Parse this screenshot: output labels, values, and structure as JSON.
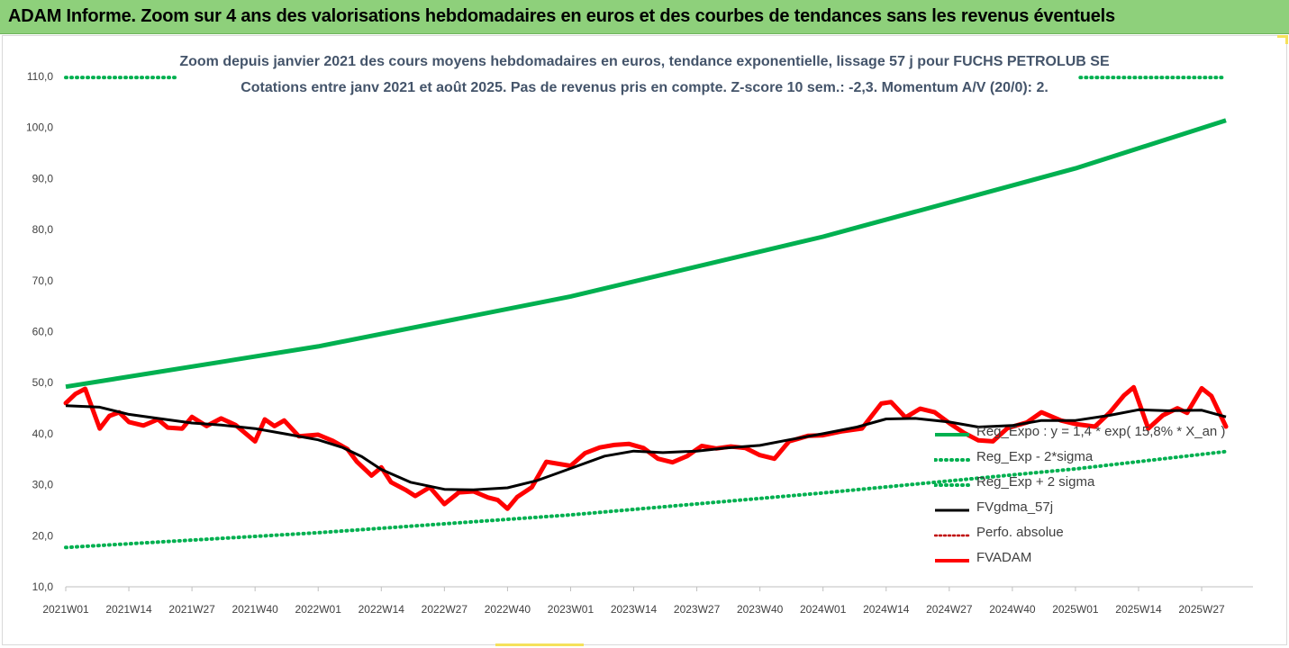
{
  "banner": {
    "title": "ADAM Informe. Zoom sur 4 ans des valorisations hebdomadaires en euros et des courbes de tendances sans les revenus éventuels"
  },
  "colors": {
    "banner_bg": "#8ed07b",
    "trend": "#00b050",
    "bands": "#00b050",
    "smooth": "#000000",
    "perf": "#c00000",
    "price": "#ff0000",
    "title_text": "#44546a"
  },
  "chart_data": {
    "type": "line",
    "title": "Zoom depuis janvier 2021 des cours moyens hebdomadaires en euros, tendance exponentielle, lissage 57 j pour FUCHS PETROLUB SE",
    "subtitle": "Cotations entre janv 2021 et août 2025. Pas de revenus pris en compte. Z-score 10 sem.: -2,3. Momentum A/V (20/0): 2.",
    "ylim": [
      10,
      110
    ],
    "y_ticks": [
      "10,0",
      "20,0",
      "30,0",
      "40,0",
      "50,0",
      "60,0",
      "70,0",
      "80,0",
      "90,0",
      "100,0",
      "110,0"
    ],
    "x_ticks": [
      "2021W01",
      "2021W14",
      "2021W27",
      "2021W40",
      "2022W01",
      "2022W14",
      "2022W27",
      "2022W40",
      "2023W01",
      "2023W14",
      "2023W27",
      "2023W40",
      "2024W01",
      "2024W14",
      "2024W27",
      "2024W40",
      "2025W01",
      "2025W14",
      "2025W27"
    ],
    "grid": false,
    "legend_position": "bottom-right",
    "legend": [
      {
        "key": "trend",
        "label": "Reg_Expo : y = 1,4 * exp( 15,8% * X_an )",
        "style": "solid-green"
      },
      {
        "key": "lower",
        "label": "Reg_Exp - 2*sigma",
        "style": "dotted-green"
      },
      {
        "key": "upper",
        "label": "Reg_Exp + 2 sigma",
        "style": "dotted-green"
      },
      {
        "key": "smooth",
        "label": "FVgdma_57j",
        "style": "solid-black"
      },
      {
        "key": "perf",
        "label": "Perfo. absolue",
        "style": "dotted-red"
      },
      {
        "key": "price",
        "label": "FVADAM",
        "style": "solid-red"
      }
    ],
    "series": {
      "trend": {
        "x": [
          "2021W01",
          "2022W01",
          "2023W01",
          "2024W01",
          "2025W01",
          "2025W32"
        ],
        "y": [
          49.2,
          57.1,
          66.9,
          78.6,
          92.0,
          101.4
        ]
      },
      "lower": {
        "x": [
          "2021W01",
          "2022W01",
          "2023W01",
          "2024W01",
          "2025W01",
          "2025W32"
        ],
        "y": [
          17.7,
          20.6,
          24.1,
          28.4,
          33.1,
          36.5
        ]
      },
      "upper": {
        "x": [
          "2021W01",
          "2021W24",
          "2025W02",
          "2025W32"
        ],
        "y": [
          109.8,
          109.8,
          109.8,
          109.8
        ]
      },
      "smooth": {
        "x": [
          "2021W01",
          "2021W08",
          "2021W14",
          "2021W20",
          "2021W27",
          "2021W33",
          "2021W40",
          "2021W46",
          "2022W01",
          "2022W06",
          "2022W10",
          "2022W14",
          "2022W20",
          "2022W27",
          "2022W33",
          "2022W40",
          "2022W46",
          "2023W01",
          "2023W08",
          "2023W14",
          "2023W20",
          "2023W27",
          "2023W33",
          "2023W40",
          "2023W46",
          "2024W01",
          "2024W08",
          "2024W14",
          "2024W20",
          "2024W27",
          "2024W33",
          "2024W40",
          "2024W46",
          "2025W01",
          "2025W08",
          "2025W14",
          "2025W20",
          "2025W27",
          "2025W32"
        ],
        "y": [
          45.5,
          45.2,
          43.8,
          43.0,
          42.1,
          41.7,
          41.0,
          40.0,
          38.8,
          37.3,
          35.5,
          33.0,
          30.5,
          29.1,
          29.0,
          29.4,
          30.8,
          33.2,
          35.6,
          36.6,
          36.3,
          36.6,
          37.2,
          37.7,
          38.8,
          40.0,
          41.3,
          42.9,
          43.0,
          42.3,
          41.3,
          41.6,
          42.6,
          42.6,
          43.6,
          44.7,
          44.5,
          44.6,
          43.3
        ]
      },
      "price": {
        "x": [
          "2021W01",
          "2021W03",
          "2021W05",
          "2021W06",
          "2021W08",
          "2021W10",
          "2021W12",
          "2021W14",
          "2021W17",
          "2021W20",
          "2021W22",
          "2021W25",
          "2021W27",
          "2021W30",
          "2021W33",
          "2021W36",
          "2021W40",
          "2021W42",
          "2021W44",
          "2021W46",
          "2021W49",
          "2022W01",
          "2022W04",
          "2022W07",
          "2022W09",
          "2022W12",
          "2022W14",
          "2022W16",
          "2022W19",
          "2022W21",
          "2022W24",
          "2022W27",
          "2022W30",
          "2022W33",
          "2022W36",
          "2022W38",
          "2022W40",
          "2022W42",
          "2022W45",
          "2022W48",
          "2023W01",
          "2023W04",
          "2023W07",
          "2023W10",
          "2023W13",
          "2023W16",
          "2023W19",
          "2023W22",
          "2023W25",
          "2023W28",
          "2023W31",
          "2023W34",
          "2023W37",
          "2023W40",
          "2023W43",
          "2023W46",
          "2023W50",
          "2024W01",
          "2024W05",
          "2024W09",
          "2024W13",
          "2024W15",
          "2024W18",
          "2024W21",
          "2024W24",
          "2024W27",
          "2024W30",
          "2024W33",
          "2024W36",
          "2024W39",
          "2024W43",
          "2024W46",
          "2024W50",
          "2025W01",
          "2025W05",
          "2025W08",
          "2025W11",
          "2025W13",
          "2025W16",
          "2025W19",
          "2025W22",
          "2025W24",
          "2025W27",
          "2025W29",
          "2025W32"
        ],
        "y": [
          46.0,
          47.8,
          48.8,
          46.2,
          41.0,
          43.5,
          44.2,
          42.3,
          41.6,
          42.8,
          41.2,
          41.0,
          43.3,
          41.5,
          43.0,
          41.7,
          38.5,
          42.8,
          41.5,
          42.6,
          39.5,
          39.8,
          38.6,
          37.0,
          34.5,
          31.8,
          33.4,
          30.5,
          29.0,
          27.8,
          29.5,
          26.2,
          28.5,
          28.7,
          27.5,
          27.0,
          25.3,
          27.6,
          29.5,
          34.5,
          33.7,
          36.2,
          37.3,
          37.8,
          38.0,
          37.2,
          35.1,
          34.4,
          35.6,
          37.6,
          37.1,
          37.5,
          37.2,
          35.8,
          35.1,
          38.5,
          39.6,
          39.7,
          40.5,
          41.0,
          45.9,
          46.2,
          43.2,
          44.9,
          44.2,
          42.1,
          40.2,
          38.7,
          38.5,
          41.1,
          42.2,
          44.2,
          42.6,
          41.9,
          41.4,
          44.1,
          47.5,
          49.1,
          41.0,
          43.6,
          45.0,
          44.1,
          48.9,
          47.4,
          41.4
        ]
      }
    }
  }
}
